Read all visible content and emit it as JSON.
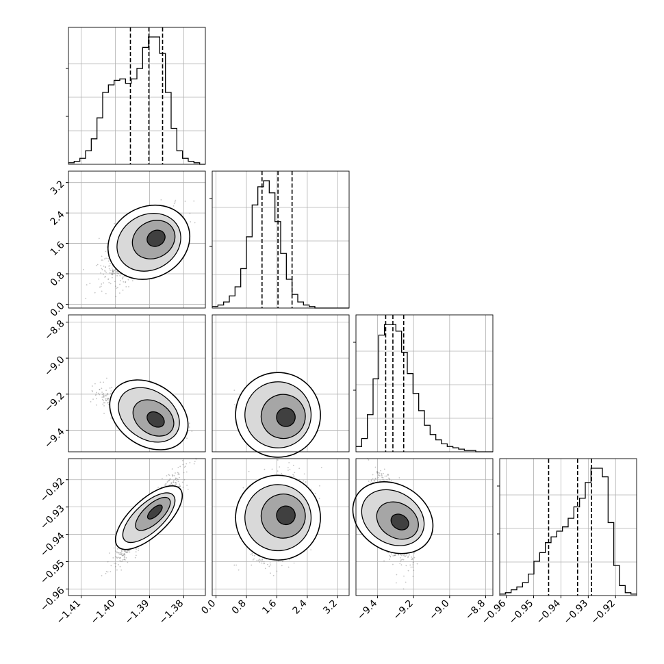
{
  "chart_data": {
    "type": "corner",
    "n_params": 4,
    "quantiles": [
      0.16,
      0.5,
      0.84
    ],
    "params": [
      {
        "range": [
          -1.4137,
          -1.3737
        ],
        "ticks": [
          -1.41,
          -1.4,
          -1.39,
          -1.38
        ],
        "tick_labels": [
          "−1.41",
          "−1.40",
          "−1.39",
          "−1.38"
        ]
      },
      {
        "range": [
          -0.1,
          3.5
        ],
        "ticks": [
          0.0,
          0.8,
          1.6,
          2.4,
          3.2
        ],
        "tick_labels": [
          "0.0",
          "0.8",
          "1.6",
          "2.4",
          "3.2"
        ]
      },
      {
        "range": [
          -9.52,
          -8.76
        ],
        "ticks": [
          -9.4,
          -9.2,
          -9.0,
          -8.8
        ],
        "tick_labels": [
          "−9.4",
          "−9.2",
          "−9.0",
          "−8.8"
        ]
      },
      {
        "range": [
          -0.9624,
          -0.9123
        ],
        "ticks": [
          -0.96,
          -0.95,
          -0.94,
          -0.93,
          -0.92
        ],
        "tick_labels": [
          "−0.96",
          "−0.95",
          "−0.94",
          "−0.93",
          "−0.92"
        ]
      }
    ],
    "histograms": [
      {
        "quantile_values": [
          -1.3956,
          -1.3902,
          -1.3862
        ],
        "counts": [
          1,
          2,
          4,
          9,
          17,
          31,
          48,
          53,
          56,
          57,
          54,
          57,
          64,
          78,
          85,
          85,
          74,
          48,
          24,
          9,
          4,
          2,
          1,
          0
        ]
      },
      {
        "quantile_values": [
          1.21,
          1.63,
          2.0
        ],
        "counts": [
          1,
          2,
          4,
          8,
          14,
          26,
          47,
          68,
          80,
          84,
          76,
          57,
          36,
          19,
          9,
          4,
          2,
          1,
          0,
          0,
          0,
          0,
          0,
          0
        ]
      },
      {
        "quantile_values": [
          -9.355,
          -9.315,
          -9.255
        ],
        "counts": [
          4,
          10,
          28,
          55,
          88,
          96,
          96,
          91,
          75,
          59,
          44,
          31,
          20,
          13,
          9,
          6,
          4,
          3,
          2,
          1,
          1,
          0,
          0,
          0
        ]
      },
      {
        "quantile_values": [
          -0.9445,
          -0.9339,
          -0.9288
        ],
        "counts": [
          1,
          2,
          4,
          6,
          9,
          15,
          24,
          30,
          37,
          41,
          45,
          48,
          54,
          62,
          68,
          79,
          89,
          89,
          83,
          51,
          21,
          7,
          2,
          1
        ]
      }
    ],
    "joint": [
      {
        "pair": [
          0,
          1
        ],
        "correlation": 0.55,
        "bimodal": true
      },
      {
        "pair": [
          0,
          2
        ],
        "correlation": -0.68,
        "bimodal": true
      },
      {
        "pair": [
          1,
          2
        ],
        "correlation": -0.3
      },
      {
        "pair": [
          0,
          3
        ],
        "correlation": 0.93
      },
      {
        "pair": [
          1,
          3
        ],
        "correlation": 0.3
      },
      {
        "pair": [
          2,
          3
        ],
        "correlation": -0.62
      }
    ],
    "grid": true,
    "colors": {
      "line": "#000000",
      "grid": "#b0b0b0",
      "points": "#555555",
      "density": "#000000"
    }
  }
}
